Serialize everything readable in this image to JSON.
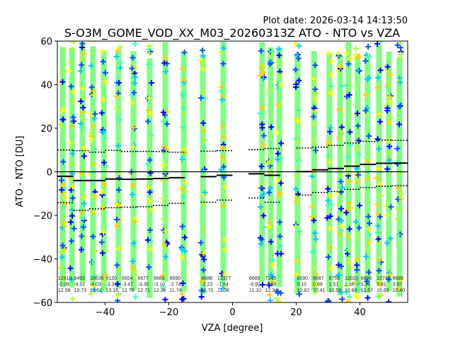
{
  "chart_data": {
    "type": "scatter",
    "title": "S-O3M_GOME_VOD_XX_M03_20260313Z ATO - NTO vs VZA",
    "plot_date": "Plot date: 2026-03-14 14:13:50",
    "xlabel": "VZA [degree]",
    "ylabel": "ATO - NTO [DU]",
    "xlim": [
      -55,
      55
    ],
    "ylim": [
      -60,
      60
    ],
    "xticks": [
      -40,
      -20,
      0,
      20,
      40
    ],
    "yticks": [
      -60,
      -40,
      -20,
      0,
      20,
      40,
      60
    ],
    "grid": false,
    "scatter_columns_vza": [
      -53.3,
      -50.4,
      -47.1,
      -43.8,
      -40.4,
      -35.8,
      -31.1,
      -26.0,
      -21.1,
      -15.3,
      -9.3,
      -2.9,
      9.3,
      12.0,
      14.7,
      20.4,
      25.6,
      30.4,
      33.8,
      36.4,
      39.3,
      42.4,
      46.0,
      49.1,
      52.4
    ],
    "bin_width": 5,
    "bins": [
      {
        "start": -55,
        "count": "12818",
        "median": "-2.09",
        "std": "12.08"
      },
      {
        "start": -50,
        "count": "6493",
        "median": "-4.02",
        "std": "13.73"
      },
      {
        "start": -45,
        "count": "10636",
        "median": "-4.03",
        "std": "13.01"
      },
      {
        "start": -40,
        "count": "9120",
        "median": "-3.33",
        "std": "13.16"
      },
      {
        "start": -35,
        "count": "6654",
        "median": "-3.47",
        "std": "12.79"
      },
      {
        "start": -30,
        "count": "6677",
        "median": "-3.35",
        "std": "12.71"
      },
      {
        "start": -25,
        "count": "6688",
        "median": "-3.10",
        "std": "12.36"
      },
      {
        "start": -20,
        "count": "6690",
        "median": "-2.74",
        "std": "11.74"
      },
      {
        "start": -10,
        "count": "6688",
        "median": "-2.23",
        "std": "11.71"
      },
      {
        "start": -5,
        "count": "13377",
        "median": "-1.64",
        "std": "11.36"
      },
      {
        "start": 5,
        "count": "6689",
        "median": "-0.92",
        "std": "11.10"
      },
      {
        "start": 10,
        "count": "7243",
        "median": "-1.64",
        "std": "12.34"
      },
      {
        "start": 20,
        "count": "6690",
        "median": "0.10",
        "std": "10.81"
      },
      {
        "start": 25,
        "count": "6687",
        "median": "0.89",
        "std": "10.41"
      },
      {
        "start": 30,
        "count": "8759",
        "median": "1.51",
        "std": "10.59"
      },
      {
        "start": 35,
        "count": "12020",
        "median": "2.56",
        "std": "10.60"
      },
      {
        "start": 40,
        "count": "6898",
        "median": "3.36",
        "std": "10.57"
      },
      {
        "start": 45,
        "count": "13742",
        "median": "3.91",
        "std": "10.63"
      },
      {
        "start": 50,
        "count": "6689",
        "median": "3.97",
        "std": "10.40"
      }
    ],
    "colors": {
      "band": "#80ff80",
      "markers": [
        "#0000ff",
        "#00ccff",
        "#ffff00",
        "#ffd000",
        "#b0ff30",
        "#0050ff",
        "#40ffb0"
      ]
    }
  }
}
